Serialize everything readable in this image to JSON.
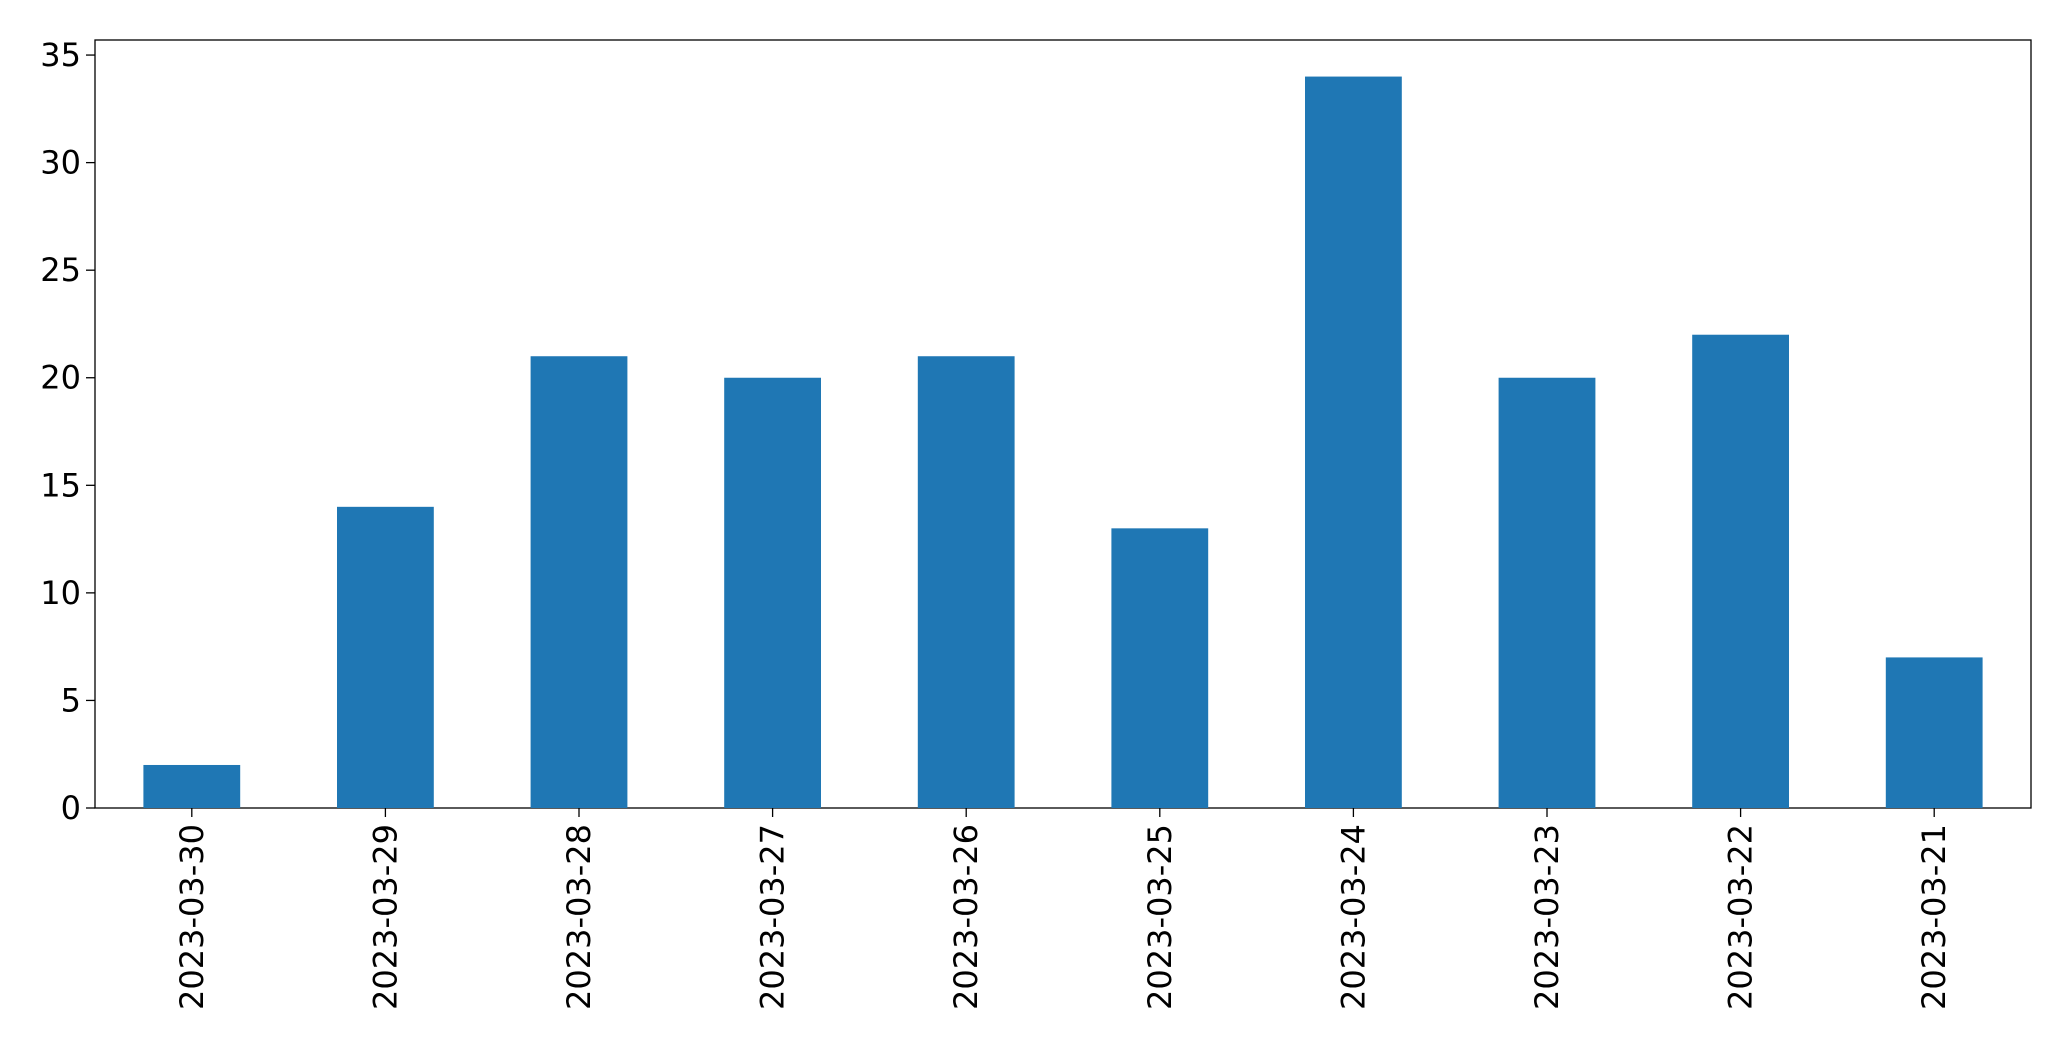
{
  "chart_data": {
    "type": "bar",
    "categories": [
      "2023-03-30",
      "2023-03-29",
      "2023-03-28",
      "2023-03-27",
      "2023-03-26",
      "2023-03-25",
      "2023-03-24",
      "2023-03-23",
      "2023-03-22",
      "2023-03-21"
    ],
    "values": [
      2,
      14,
      21,
      20,
      21,
      13,
      34,
      20,
      22,
      7
    ],
    "color": "#1f77b4",
    "ylim": [
      0,
      35.7
    ],
    "yticks": [
      0,
      5,
      10,
      15,
      20,
      25,
      30,
      35
    ],
    "grid": false
  }
}
